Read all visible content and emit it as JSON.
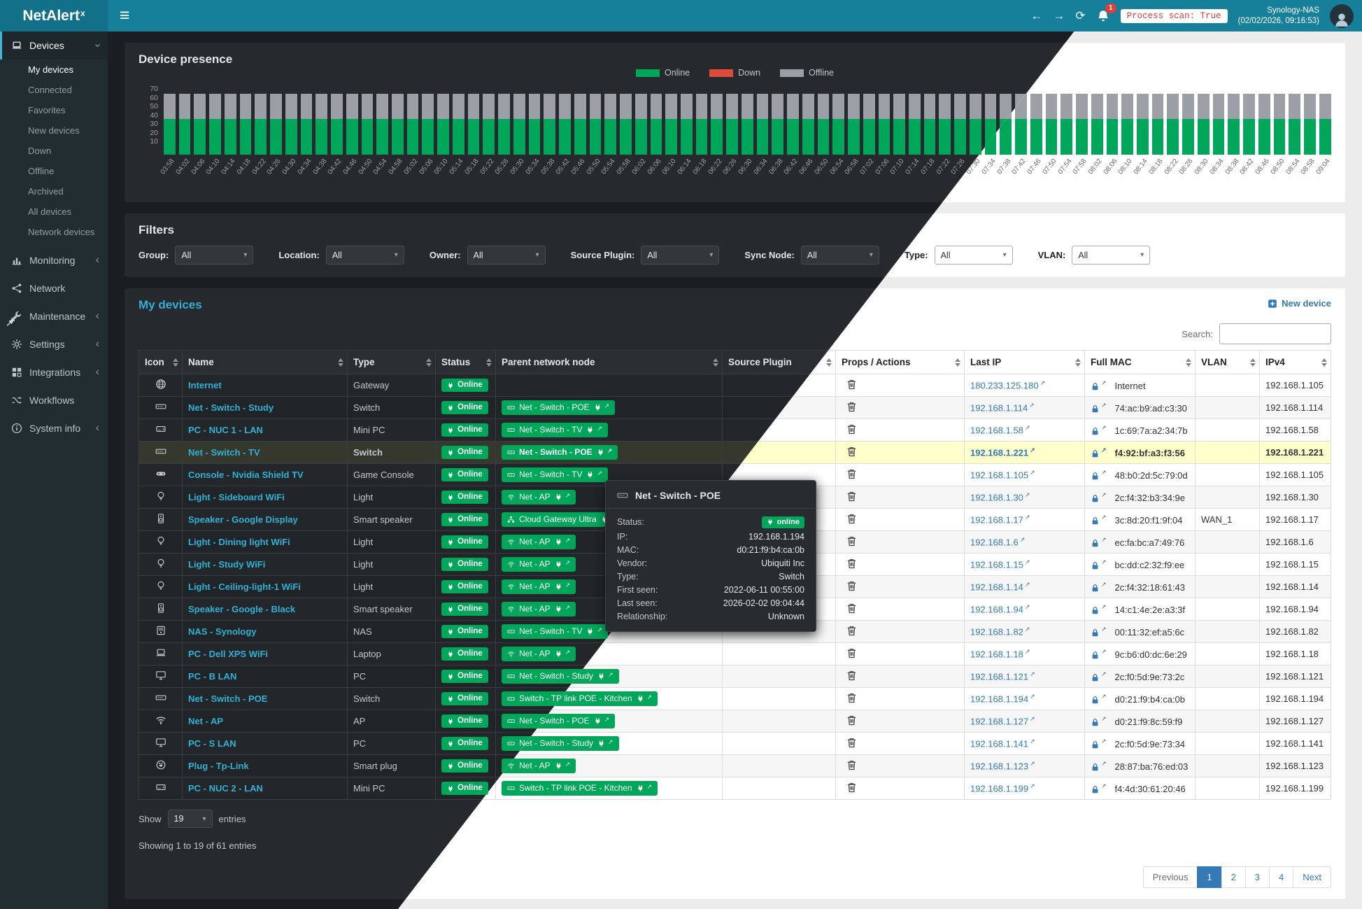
{
  "topbar": {
    "brand_main": "NetAlert",
    "brand_sup": "x",
    "hamburger": "≡",
    "back": "←",
    "forward": "→",
    "refresh": "⟳",
    "notification_count": "1",
    "process_scan": "Process scan: True",
    "host_name": "Synology-NAS",
    "host_time": "(02/02/2026, 09:16:53)"
  },
  "sidebar": {
    "sections": [
      {
        "label": "Devices",
        "icon": "devices-icon",
        "expanded": true,
        "active": true,
        "active_child": "My devices",
        "children": [
          "My devices",
          "Connected",
          "Favorites",
          "New devices",
          "Down",
          "Offline",
          "Archived",
          "All devices",
          "Network devices"
        ]
      },
      {
        "label": "Monitoring",
        "icon": "monitoring-icon",
        "chevron": true
      },
      {
        "label": "Network",
        "icon": "network-icon",
        "chevron": false
      },
      {
        "label": "Maintenance",
        "icon": "maintenance-icon",
        "chevron": true
      },
      {
        "label": "Settings",
        "icon": "settings-icon",
        "chevron": true
      },
      {
        "label": "Integrations",
        "icon": "integrations-icon",
        "chevron": true
      },
      {
        "label": "Workflows",
        "icon": "workflows-icon",
        "chevron": false
      },
      {
        "label": "System info",
        "icon": "systeminfo-icon",
        "chevron": true
      }
    ]
  },
  "chart_data": {
    "type": "stacked-bar",
    "title": "Device presence",
    "ylim": [
      0,
      70
    ],
    "y_ticks": [
      "70",
      "60",
      "50",
      "40",
      "30",
      "20",
      "10"
    ],
    "legend_position": "top-center",
    "x": [
      "03:58",
      "04:02",
      "04:06",
      "04:10",
      "04:14",
      "04:18",
      "04:22",
      "04:26",
      "04:30",
      "04:34",
      "04:38",
      "04:42",
      "04:46",
      "04:50",
      "04:54",
      "04:58",
      "05:02",
      "05:06",
      "05:10",
      "05:14",
      "05:18",
      "05:22",
      "05:26",
      "05:30",
      "05:34",
      "05:38",
      "05:42",
      "05:46",
      "05:50",
      "05:54",
      "05:58",
      "06:02",
      "06:06",
      "06:10",
      "06:14",
      "06:18",
      "06:22",
      "06:26",
      "06:30",
      "06:34",
      "06:38",
      "06:42",
      "06:46",
      "06:50",
      "06:54",
      "06:58",
      "07:02",
      "07:06",
      "07:10",
      "07:14",
      "07:18",
      "07:22",
      "07:26",
      "07:30",
      "07:34",
      "07:38",
      "07:42",
      "07:46",
      "07:50",
      "07:54",
      "07:58",
      "08:02",
      "08:06",
      "08:10",
      "08:14",
      "08:18",
      "08:22",
      "08:26",
      "08:30",
      "08:34",
      "08:38",
      "08:42",
      "08:46",
      "08:50",
      "08:54",
      "08:58",
      "09:04"
    ],
    "series": [
      {
        "name": "Online",
        "color": "#00a65a",
        "values": [
          36,
          36,
          36,
          36,
          36,
          36,
          36,
          36,
          36,
          36,
          36,
          36,
          36,
          36,
          36,
          36,
          36,
          36,
          36,
          36,
          36,
          36,
          36,
          36,
          36,
          36,
          36,
          36,
          36,
          36,
          36,
          36,
          36,
          36,
          36,
          36,
          36,
          36,
          36,
          36,
          36,
          36,
          36,
          36,
          36,
          36,
          36,
          36,
          36,
          36,
          36,
          36,
          36,
          36,
          36,
          36,
          36,
          36,
          36,
          36,
          36,
          36,
          36,
          36,
          36,
          36,
          36,
          36,
          36,
          36,
          36,
          36,
          36,
          36,
          36,
          36,
          36
        ]
      },
      {
        "name": "Down",
        "color": "#dd4b39",
        "values": [
          0,
          0,
          0,
          0,
          0,
          0,
          0,
          0,
          0,
          0,
          0,
          0,
          0,
          0,
          0,
          0,
          0,
          0,
          0,
          0,
          0,
          0,
          0,
          0,
          0,
          0,
          0,
          0,
          0,
          0,
          0,
          0,
          0,
          0,
          0,
          0,
          0,
          0,
          0,
          0,
          0,
          0,
          0,
          0,
          0,
          0,
          0,
          0,
          0,
          0,
          0,
          0,
          0,
          0,
          0,
          0,
          0,
          0,
          0,
          0,
          0,
          0,
          0,
          0,
          0,
          0,
          0,
          0,
          0,
          0,
          0,
          0,
          0,
          0,
          0,
          0,
          0
        ]
      },
      {
        "name": "Offline",
        "color": "#9aa0a5",
        "values": [
          25,
          25,
          25,
          25,
          25,
          25,
          25,
          25,
          25,
          25,
          25,
          25,
          25,
          25,
          25,
          25,
          25,
          25,
          25,
          25,
          25,
          25,
          25,
          25,
          25,
          25,
          25,
          25,
          25,
          25,
          25,
          25,
          25,
          25,
          25,
          25,
          25,
          25,
          25,
          25,
          25,
          25,
          25,
          25,
          25,
          25,
          25,
          25,
          25,
          25,
          25,
          25,
          25,
          25,
          25,
          25,
          25,
          25,
          25,
          25,
          25,
          25,
          25,
          25,
          25,
          25,
          25,
          25,
          25,
          25,
          25,
          25,
          25,
          25,
          25,
          25,
          25
        ]
      }
    ]
  },
  "filters": {
    "title": "Filters",
    "items": [
      {
        "label": "Group:",
        "value": "All"
      },
      {
        "label": "Location:",
        "value": "All"
      },
      {
        "label": "Owner:",
        "value": "All"
      },
      {
        "label": "Source Plugin:",
        "value": "All"
      },
      {
        "label": "Sync Node:",
        "value": "All"
      },
      {
        "label": "Type:",
        "value": "All"
      },
      {
        "label": "VLAN:",
        "value": "All"
      }
    ]
  },
  "devices": {
    "title": "My devices",
    "new_device_label": "New device",
    "search_label": "Search:",
    "search_value": "",
    "columns": [
      "Icon",
      "Name",
      "Type",
      "Status",
      "Parent network node",
      "Source Plugin",
      "Props / Actions",
      "Last IP",
      "Full MAC",
      "VLAN",
      "IPv4"
    ],
    "rows": [
      {
        "icon": "globe-icon",
        "name": "Internet",
        "type": "Gateway",
        "status": "Online",
        "parent": null,
        "source_plugin": "",
        "last_ip": "180.233.125.180",
        "mac": "Internet",
        "vlan": "",
        "ipv4": "192.168.1.105",
        "highlight": false
      },
      {
        "icon": "switch-icon",
        "name": "Net - Switch - Study",
        "type": "Switch",
        "status": "Online",
        "parent": {
          "icon": "switch-icon",
          "label": "Net - Switch - POE"
        },
        "source_plugin": "",
        "last_ip": "192.168.1.114",
        "mac": "74:ac:b9:ad:c3:30",
        "vlan": "",
        "ipv4": "192.168.1.114",
        "highlight": false
      },
      {
        "icon": "minipc-icon",
        "name": "PC - NUC 1 - LAN",
        "type": "Mini PC",
        "status": "Online",
        "parent": {
          "icon": "switch-icon",
          "label": "Net - Switch - TV"
        },
        "source_plugin": "",
        "last_ip": "192.168.1.58",
        "mac": "1c:69:7a:a2:34:7b",
        "vlan": "",
        "ipv4": "192.168.1.58",
        "highlight": false
      },
      {
        "icon": "switch-icon",
        "name": "Net - Switch - TV",
        "type": "Switch",
        "status": "Online",
        "parent": {
          "icon": "switch-icon",
          "label": "Net - Switch - POE"
        },
        "source_plugin": "",
        "last_ip": "192.168.1.221",
        "mac": "f4:92:bf:a3:f3:56",
        "vlan": "",
        "ipv4": "192.168.1.221",
        "highlight": true
      },
      {
        "icon": "console-icon",
        "name": "Console - Nvidia Shield TV",
        "type": "Game Console",
        "status": "Online",
        "parent": {
          "icon": "switch-icon",
          "label": "Net - Switch - TV"
        },
        "source_plugin": "",
        "last_ip": "192.168.1.105",
        "mac": "48:b0:2d:5c:79:0d",
        "vlan": "",
        "ipv4": "192.168.1.105",
        "highlight": false
      },
      {
        "icon": "light-icon",
        "name": "Light - Sideboard WiFi",
        "type": "Light",
        "status": "Online",
        "parent": {
          "icon": "wifi-icon",
          "label": "Net - AP"
        },
        "source_plugin": "",
        "last_ip": "192.168.1.30",
        "mac": "2c:f4:32:b3:34:9e",
        "vlan": "",
        "ipv4": "192.168.1.30",
        "highlight": false
      },
      {
        "icon": "speaker-icon",
        "name": "Speaker - Google Display",
        "type": "Smart speaker",
        "status": "Online",
        "parent": {
          "icon": "gateway-icon",
          "label": "Cloud Gateway Ultra"
        },
        "source_plugin": "",
        "last_ip": "192.168.1.17",
        "mac": "3c:8d:20:f1:9f:04",
        "vlan": "WAN_1",
        "ipv4": "192.168.1.17",
        "highlight": false
      },
      {
        "icon": "light-icon",
        "name": "Light - Dining light WiFi",
        "type": "Light",
        "status": "Online",
        "parent": {
          "icon": "wifi-icon",
          "label": "Net - AP"
        },
        "source_plugin": "",
        "last_ip": "192.168.1.6",
        "mac": "ec:fa:bc:a7:49:76",
        "vlan": "",
        "ipv4": "192.168.1.6",
        "highlight": false
      },
      {
        "icon": "light-icon",
        "name": "Light - Study WiFi",
        "type": "Light",
        "status": "Online",
        "parent": {
          "icon": "wifi-icon",
          "label": "Net - AP"
        },
        "source_plugin": "",
        "last_ip": "192.168.1.15",
        "mac": "bc:dd:c2:32:f9:ee",
        "vlan": "",
        "ipv4": "192.168.1.15",
        "highlight": false
      },
      {
        "icon": "light-icon",
        "name": "Light - Ceiling-light-1 WiFi",
        "type": "Light",
        "status": "Online",
        "parent": {
          "icon": "wifi-icon",
          "label": "Net - AP"
        },
        "source_plugin": "",
        "last_ip": "192.168.1.14",
        "mac": "2c:f4:32:18:61:43",
        "vlan": "",
        "ipv4": "192.168.1.14",
        "highlight": false
      },
      {
        "icon": "speaker-icon",
        "name": "Speaker - Google - Black",
        "type": "Smart speaker",
        "status": "Online",
        "parent": {
          "icon": "wifi-icon",
          "label": "Net - AP"
        },
        "source_plugin": "",
        "last_ip": "192.168.1.94",
        "mac": "14:c1:4e:2e:a3:3f",
        "vlan": "",
        "ipv4": "192.168.1.94",
        "highlight": false
      },
      {
        "icon": "nas-icon",
        "name": "NAS - Synology",
        "type": "NAS",
        "status": "Online",
        "parent": {
          "icon": "switch-icon",
          "label": "Net - Switch - TV"
        },
        "source_plugin": "",
        "last_ip": "192.168.1.82",
        "mac": "00:11:32:ef:a5:6c",
        "vlan": "",
        "ipv4": "192.168.1.82",
        "highlight": false
      },
      {
        "icon": "laptop-icon",
        "name": "PC - Dell XPS WiFi",
        "type": "Laptop",
        "status": "Online",
        "parent": {
          "icon": "wifi-icon",
          "label": "Net - AP"
        },
        "source_plugin": "",
        "last_ip": "192.168.1.18",
        "mac": "9c:b6:d0:dc:6e:29",
        "vlan": "",
        "ipv4": "192.168.1.18",
        "highlight": false
      },
      {
        "icon": "pc-icon",
        "name": "PC - B LAN",
        "type": "PC",
        "status": "Online",
        "parent": {
          "icon": "switch-icon",
          "label": "Net - Switch - Study"
        },
        "source_plugin": "",
        "last_ip": "192.168.1.121",
        "mac": "2c:f0:5d:9e:73:2c",
        "vlan": "",
        "ipv4": "192.168.1.121",
        "highlight": false
      },
      {
        "icon": "switch-icon",
        "name": "Net - Switch - POE",
        "type": "Switch",
        "status": "Online",
        "parent": {
          "icon": "switch-icon",
          "label": "Switch - TP link POE - Kitchen"
        },
        "source_plugin": "",
        "last_ip": "192.168.1.194",
        "mac": "d0:21:f9:b4:ca:0b",
        "vlan": "",
        "ipv4": "192.168.1.194",
        "highlight": false
      },
      {
        "icon": "wifi-icon",
        "name": "Net - AP",
        "type": "AP",
        "status": "Online",
        "parent": {
          "icon": "switch-icon",
          "label": "Net - Switch - POE"
        },
        "source_plugin": "",
        "last_ip": "192.168.1.127",
        "mac": "d0:21:f9:8c:59:f9",
        "vlan": "",
        "ipv4": "192.168.1.127",
        "highlight": false
      },
      {
        "icon": "pc-icon",
        "name": "PC - S LAN",
        "type": "PC",
        "status": "Online",
        "parent": {
          "icon": "switch-icon",
          "label": "Net - Switch - Study"
        },
        "source_plugin": "",
        "last_ip": "192.168.1.141",
        "mac": "2c:f0:5d:9e:73:34",
        "vlan": "",
        "ipv4": "192.168.1.141",
        "highlight": false
      },
      {
        "icon": "smartplug-icon",
        "name": "Plug - Tp-Link",
        "type": "Smart plug",
        "status": "Online",
        "parent": {
          "icon": "wifi-icon",
          "label": "Net - AP"
        },
        "source_plugin": "",
        "last_ip": "192.168.1.123",
        "mac": "28:87:ba:76:ed:03",
        "vlan": "",
        "ipv4": "192.168.1.123",
        "highlight": false
      },
      {
        "icon": "minipc-icon",
        "name": "PC - NUC 2 - LAN",
        "type": "Mini PC",
        "status": "Online",
        "parent": {
          "icon": "switch-icon",
          "label": "Switch - TP link POE - Kitchen"
        },
        "source_plugin": "",
        "last_ip": "192.168.1.199",
        "mac": "f4:4d:30:61:20:46",
        "vlan": "",
        "ipv4": "192.168.1.199",
        "highlight": false
      }
    ],
    "show_label": "Show",
    "show_value": "19",
    "entries_label": "entries",
    "summary": "Showing 1 to 19 of 61 entries",
    "pagination": {
      "prev": "Previous",
      "pages": [
        "1",
        "2",
        "3",
        "4"
      ],
      "next": "Next",
      "active": "1"
    }
  },
  "tooltip": {
    "icon": "switch-icon",
    "title": "Net - Switch - POE",
    "fields": [
      {
        "label": "Status:",
        "value": "online",
        "badge": true
      },
      {
        "label": "IP:",
        "value": "192.168.1.194"
      },
      {
        "label": "MAC:",
        "value": "d0:21:f9:b4:ca:0b"
      },
      {
        "label": "Vendor:",
        "value": "Ubiquiti Inc"
      },
      {
        "label": "Type:",
        "value": "Switch"
      },
      {
        "label": "First seen:",
        "value": "2022-06-11 00:55:00"
      },
      {
        "label": "Last seen:",
        "value": "2026-02-02 09:04:44"
      },
      {
        "label": "Relationship:",
        "value": "Unknown"
      }
    ]
  }
}
